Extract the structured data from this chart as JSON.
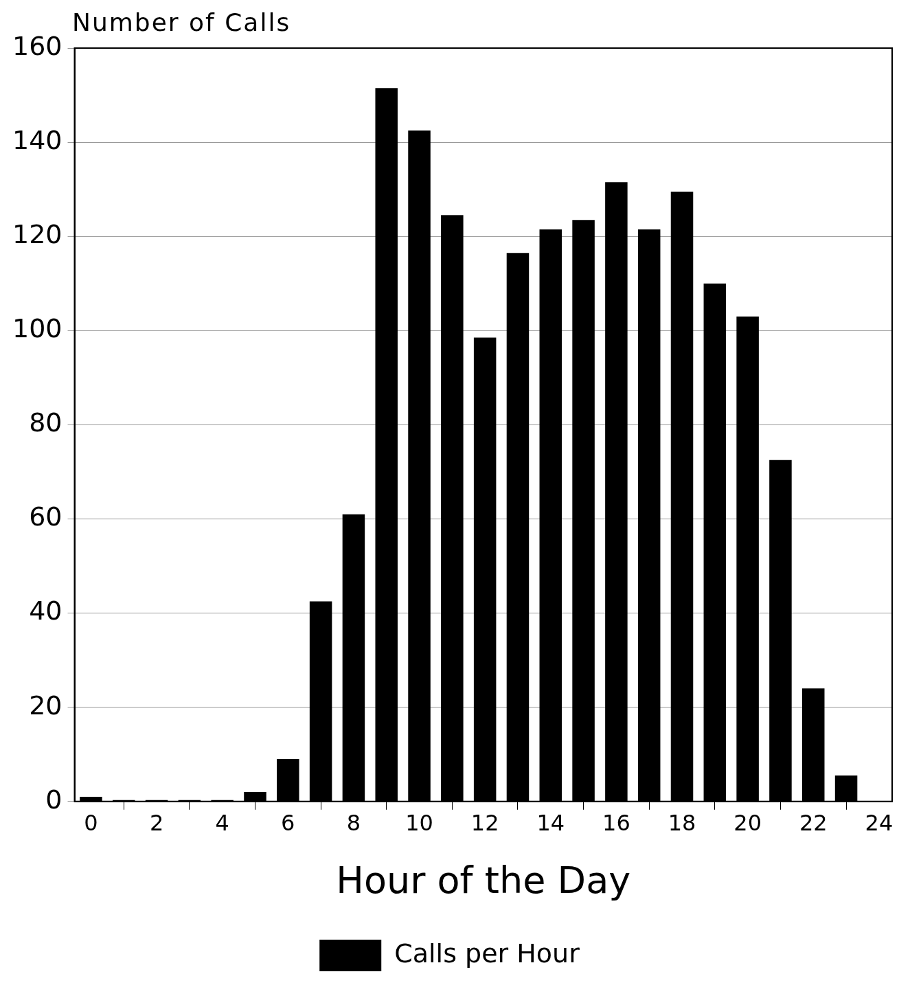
{
  "chart_data": {
    "type": "bar",
    "ylabel": "Number of Calls",
    "xlabel": "Hour of the Day",
    "x": [
      0,
      1,
      2,
      3,
      4,
      5,
      6,
      7,
      8,
      9,
      10,
      11,
      12,
      13,
      14,
      15,
      16,
      17,
      18,
      19,
      20,
      21,
      22,
      23
    ],
    "series": [
      {
        "name": "Calls per Hour",
        "color": "#000000",
        "values": [
          1,
          0.3,
          0.3,
          0.3,
          0.3,
          2,
          9,
          42.5,
          61,
          151.5,
          142.5,
          124.5,
          98.5,
          116.5,
          121.5,
          123.5,
          131.5,
          121.5,
          129.5,
          110,
          103,
          72.5,
          24,
          5.5
        ]
      }
    ],
    "xlim": [
      -0.5,
      24.4
    ],
    "xticks": [
      0,
      2,
      4,
      6,
      8,
      10,
      12,
      14,
      16,
      18,
      20,
      22,
      24
    ],
    "ylim": [
      0,
      160
    ],
    "yticks": [
      0,
      20,
      40,
      60,
      80,
      100,
      120,
      140,
      160
    ],
    "grid": "y",
    "legend": "bottom"
  }
}
